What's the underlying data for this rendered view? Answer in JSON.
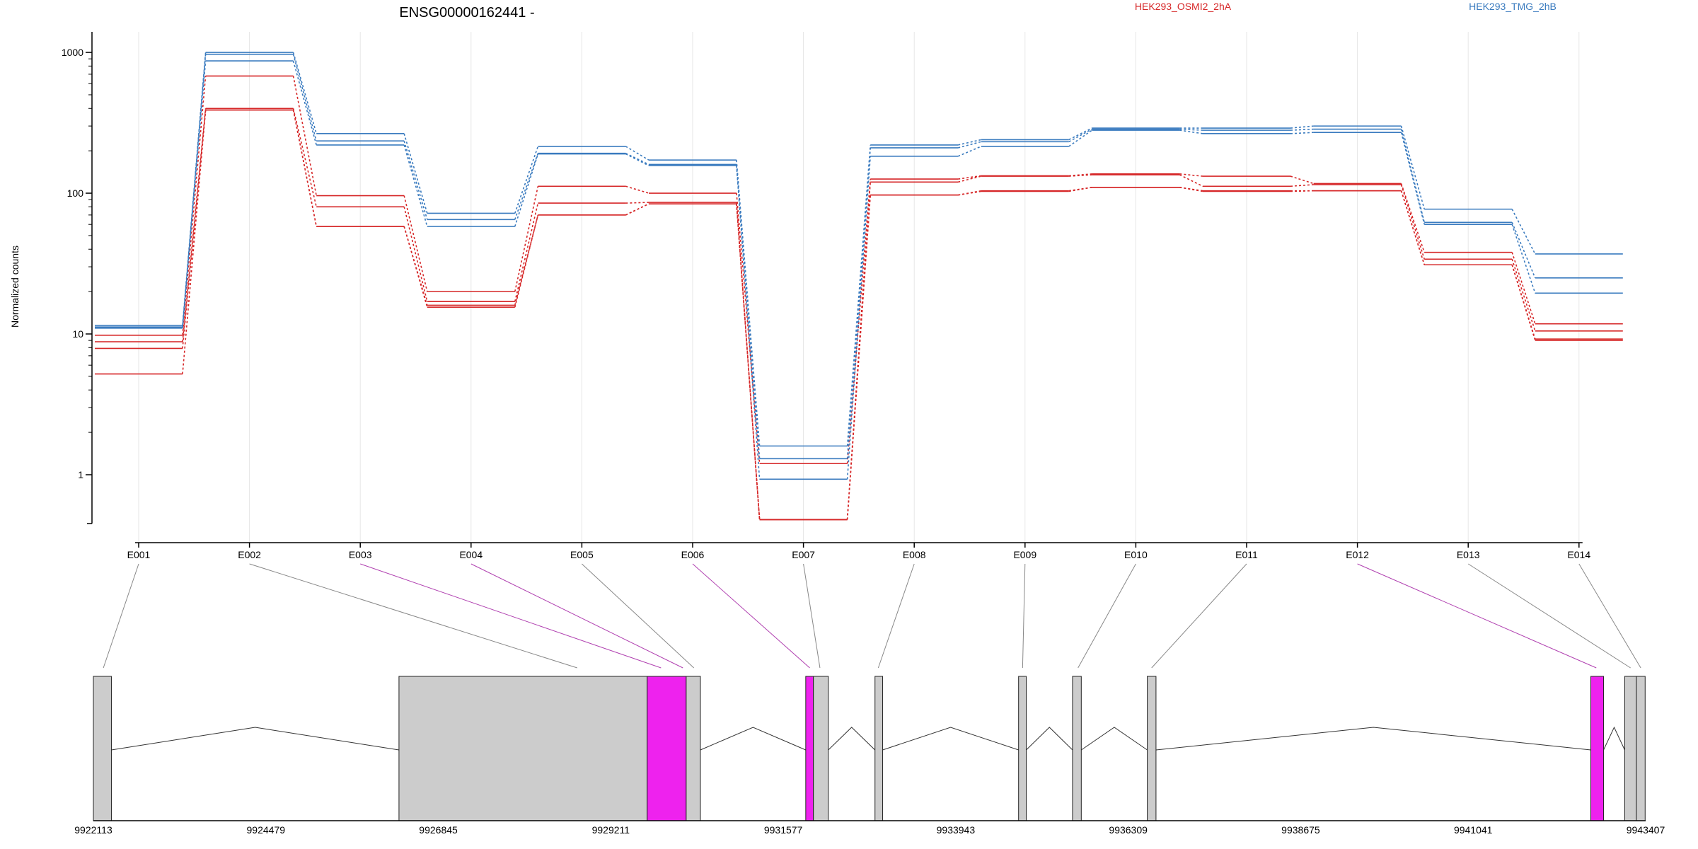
{
  "chart_data": {
    "type": "line",
    "title": "ENSG00000162441 -",
    "ylabel": "Normalized counts",
    "xlabel": "",
    "yscale": "log",
    "ylim": [
      0.45,
      1400
    ],
    "yticks": [
      1,
      10,
      100,
      1000
    ],
    "ytick_labels": [
      "1",
      "10",
      "100",
      "1000"
    ],
    "grid": "vertical",
    "legend": {
      "placement": "top-right",
      "entries": [
        {
          "name": "HEK293_OSMI2_2hA",
          "color": "#d62728"
        },
        {
          "name": "HEK293_TMG_2hB",
          "color": "#3a7bbf"
        }
      ]
    },
    "categories": [
      "E001",
      "E002",
      "E003",
      "E004",
      "E005",
      "E006",
      "E007",
      "E008",
      "E009",
      "E010",
      "E011",
      "E012",
      "E013",
      "E014"
    ],
    "series": [
      {
        "group": "HEK293_OSMI2_2hA",
        "color": "#d62728",
        "values": [
          9.8,
          680,
          96,
          20,
          112,
          100,
          1.2,
          126,
          133,
          137,
          132,
          117,
          38,
          11.8
        ]
      },
      {
        "group": "HEK293_OSMI2_2hA",
        "color": "#d62728",
        "values": [
          8.8,
          400,
          80,
          17,
          85,
          86,
          0.48,
          120,
          132,
          135,
          112,
          115,
          34,
          10.5
        ]
      },
      {
        "group": "HEK293_OSMI2_2hA",
        "color": "#d62728",
        "values": [
          7.9,
          390,
          58,
          16,
          70,
          84,
          0.48,
          97,
          104,
          110,
          104,
          104,
          31,
          9.2
        ]
      },
      {
        "group": "HEK293_OSMI2_2hA",
        "color": "#d62728",
        "values": [
          5.2,
          390,
          58,
          15.5,
          70,
          84,
          0.48,
          97,
          103,
          110,
          103,
          104,
          31,
          9.0
        ]
      },
      {
        "group": "HEK293_TMG_2hB",
        "color": "#3a7bbf",
        "values": [
          11.5,
          1000,
          265,
          72,
          215,
          172,
          1.6,
          220,
          240,
          290,
          290,
          300,
          77,
          37
        ]
      },
      {
        "group": "HEK293_TMG_2hB",
        "color": "#3a7bbf",
        "values": [
          11.2,
          970,
          235,
          65,
          192,
          160,
          1.3,
          210,
          232,
          285,
          280,
          285,
          62,
          25
        ]
      },
      {
        "group": "HEK293_TMG_2hB",
        "color": "#3a7bbf",
        "values": [
          11.0,
          870,
          220,
          58,
          190,
          157,
          0.93,
          183,
          215,
          280,
          265,
          270,
          60,
          19.5
        ]
      }
    ],
    "gene_model": {
      "coordinate_labels": [
        "9922113",
        "9924479",
        "9926845",
        "9929211",
        "9931577",
        "9933943",
        "9936309",
        "9938675",
        "9941041",
        "9943407"
      ],
      "coordinate_range": [
        9922113,
        9943407
      ],
      "fill_colors": {
        "normal": "#cccccc",
        "highlight": "#ee22ee"
      },
      "exons": [
        {
          "start": 9922113,
          "end": 9922360,
          "highlight": false
        },
        {
          "start": 9926305,
          "end": 9929710,
          "highlight": false
        },
        {
          "start": 9929710,
          "end": 9930245,
          "highlight": true
        },
        {
          "start": 9930245,
          "end": 9930440,
          "highlight": false
        },
        {
          "start": 9931885,
          "end": 9931990,
          "highlight": true
        },
        {
          "start": 9931990,
          "end": 9932195,
          "highlight": false
        },
        {
          "start": 9932835,
          "end": 9932940,
          "highlight": false
        },
        {
          "start": 9934805,
          "end": 9934910,
          "highlight": false
        },
        {
          "start": 9935545,
          "end": 9935665,
          "highlight": false
        },
        {
          "start": 9936570,
          "end": 9936690,
          "highlight": false
        },
        {
          "start": 9942655,
          "end": 9942830,
          "highlight": true
        },
        {
          "start": 9943120,
          "end": 9943280,
          "highlight": false
        },
        {
          "start": 9943280,
          "end": 9943400,
          "highlight": false
        }
      ],
      "bin_links": [
        {
          "bin": "E001",
          "coord": 9922250,
          "highlight": false
        },
        {
          "bin": "E002",
          "coord": 9928750,
          "highlight": false
        },
        {
          "bin": "E003",
          "coord": 9929900,
          "highlight": true
        },
        {
          "bin": "E004",
          "coord": 9930200,
          "highlight": true
        },
        {
          "bin": "E005",
          "coord": 9930350,
          "highlight": false
        },
        {
          "bin": "E006",
          "coord": 9931940,
          "highlight": true
        },
        {
          "bin": "E007",
          "coord": 9932080,
          "highlight": false
        },
        {
          "bin": "E008",
          "coord": 9932880,
          "highlight": false
        },
        {
          "bin": "E009",
          "coord": 9934860,
          "highlight": false
        },
        {
          "bin": "E010",
          "coord": 9935620,
          "highlight": false
        },
        {
          "bin": "E011",
          "coord": 9936630,
          "highlight": false
        },
        {
          "bin": "E012",
          "coord": 9942730,
          "highlight": true
        },
        {
          "bin": "E013",
          "coord": 9943200,
          "highlight": false
        },
        {
          "bin": "E014",
          "coord": 9943340,
          "highlight": false
        }
      ]
    }
  }
}
